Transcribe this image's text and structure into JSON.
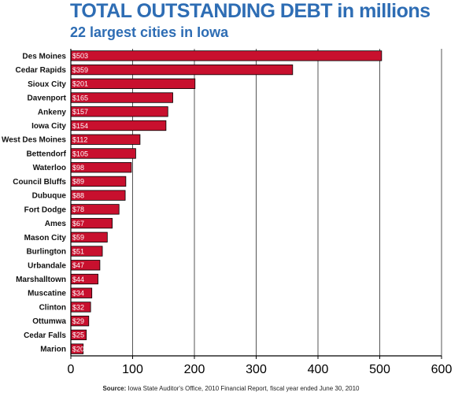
{
  "header": {
    "title": "TOTAL OUTSTANDING DEBT in millions",
    "subtitle": "22 largest cities in Iowa"
  },
  "footer": {
    "source_label": "Source:",
    "source_text": "Iowa State Auditor's Office, 2010 Financial Report, fiscal year ended June 30, 2010"
  },
  "colors": {
    "bar": "#c8102e",
    "title": "#2e6db4"
  },
  "chart_data": {
    "type": "bar",
    "orientation": "horizontal",
    "title": "TOTAL OUTSTANDING DEBT in millions",
    "subtitle": "22 largest cities in Iowa",
    "categories": [
      "Des Moines",
      "Cedar Rapids",
      "Sioux City",
      "Davenport",
      "Ankeny",
      "Iowa City",
      "West Des Moines",
      "Bettendorf",
      "Waterloo",
      "Council Bluffs",
      "Dubuque",
      "Fort Dodge",
      "Ames",
      "Mason City",
      "Burlington",
      "Urbandale",
      "Marshalltown",
      "Muscatine",
      "Clinton",
      "Ottumwa",
      "Cedar Falls",
      "Marion"
    ],
    "values": [
      503,
      359,
      201,
      165,
      157,
      154,
      112,
      105,
      98,
      89,
      88,
      78,
      67,
      59,
      51,
      47,
      44,
      34,
      32,
      29,
      25,
      20
    ],
    "value_labels": [
      "$503",
      "$359",
      "$201",
      "$165",
      "$157",
      "$154",
      "$112",
      "$105",
      "$98",
      "$89",
      "$88",
      "$78",
      "$67",
      "$59",
      "$51",
      "$47",
      "$44",
      "$34",
      "$32",
      "$29",
      "$25",
      "$20"
    ],
    "xlim": [
      0,
      600
    ],
    "xticks": [
      0,
      100,
      200,
      300,
      400,
      500,
      600
    ],
    "xtick_labels": [
      "0",
      "100",
      "200",
      "300",
      "400",
      "500",
      "600"
    ],
    "grid": true
  }
}
